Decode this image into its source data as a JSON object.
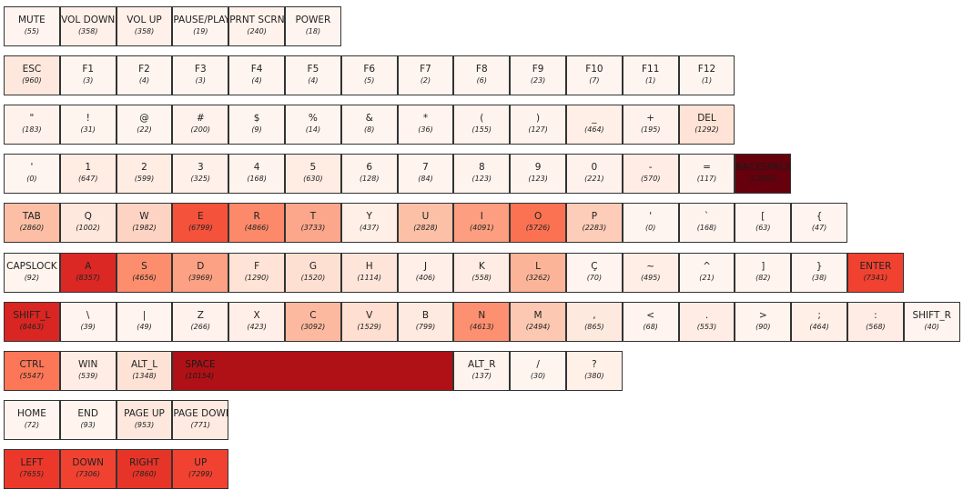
{
  "chart_data": {
    "type": "heatmap",
    "title": "",
    "value_max": 12063,
    "colors": {
      "low": "#fff5f0",
      "high": "#67000d",
      "border": "#333333"
    },
    "rows": [
      {
        "keys": [
          {
            "label": "MUTE",
            "count": 55
          },
          {
            "label": "VOL DOWN",
            "count": 358
          },
          {
            "label": "VOL UP",
            "count": 358
          },
          {
            "label": "PAUSE/PLAY",
            "count": 19
          },
          {
            "label": "PRNT SCRN",
            "count": 240
          },
          {
            "label": "POWER",
            "count": 18
          }
        ]
      },
      {
        "keys": [
          {
            "label": "ESC",
            "count": 960
          },
          {
            "label": "F1",
            "count": 3
          },
          {
            "label": "F2",
            "count": 4
          },
          {
            "label": "F3",
            "count": 3
          },
          {
            "label": "F4",
            "count": 4
          },
          {
            "label": "F5",
            "count": 4
          },
          {
            "label": "F6",
            "count": 5
          },
          {
            "label": "F7",
            "count": 2
          },
          {
            "label": "F8",
            "count": 6
          },
          {
            "label": "F9",
            "count": 23
          },
          {
            "label": "F10",
            "count": 7
          },
          {
            "label": "F11",
            "count": 1
          },
          {
            "label": "F12",
            "count": 1
          }
        ]
      },
      {
        "keys": [
          {
            "label": "\"",
            "count": 183
          },
          {
            "label": "!",
            "count": 31
          },
          {
            "label": "@",
            "count": 22
          },
          {
            "label": "#",
            "count": 200
          },
          {
            "label": "$",
            "count": 9
          },
          {
            "label": "%",
            "count": 14
          },
          {
            "label": "&",
            "count": 8
          },
          {
            "label": "*",
            "count": 36
          },
          {
            "label": "(",
            "count": 155
          },
          {
            "label": ")",
            "count": 127
          },
          {
            "label": "_",
            "count": 464
          },
          {
            "label": "+",
            "count": 195
          },
          {
            "label": "DEL",
            "count": 1292
          }
        ]
      },
      {
        "keys": [
          {
            "label": "'",
            "count": 0
          },
          {
            "label": "1",
            "count": 647
          },
          {
            "label": "2",
            "count": 599
          },
          {
            "label": "3",
            "count": 325
          },
          {
            "label": "4",
            "count": 168
          },
          {
            "label": "5",
            "count": 630
          },
          {
            "label": "6",
            "count": 128
          },
          {
            "label": "7",
            "count": 84
          },
          {
            "label": "8",
            "count": 123
          },
          {
            "label": "9",
            "count": 123
          },
          {
            "label": "0",
            "count": 221
          },
          {
            "label": "-",
            "count": 570
          },
          {
            "label": "=",
            "count": 117
          },
          {
            "label": "BACKSPACE",
            "count": 12063
          }
        ]
      },
      {
        "keys": [
          {
            "label": "TAB",
            "count": 2860
          },
          {
            "label": "Q",
            "count": 1002
          },
          {
            "label": "W",
            "count": 1982
          },
          {
            "label": "E",
            "count": 6799
          },
          {
            "label": "R",
            "count": 4866
          },
          {
            "label": "T",
            "count": 3733
          },
          {
            "label": "Y",
            "count": 437
          },
          {
            "label": "U",
            "count": 2828
          },
          {
            "label": "I",
            "count": 4091
          },
          {
            "label": "O",
            "count": 5726
          },
          {
            "label": "P",
            "count": 2283
          },
          {
            "label": "'",
            "count": 0
          },
          {
            "label": "`",
            "count": 168
          },
          {
            "label": "[",
            "count": 63
          },
          {
            "label": "{",
            "count": 47
          }
        ]
      },
      {
        "keys": [
          {
            "label": "CAPSLOCK",
            "count": 92
          },
          {
            "label": "A",
            "count": 8357
          },
          {
            "label": "S",
            "count": 4656
          },
          {
            "label": "D",
            "count": 3969
          },
          {
            "label": "F",
            "count": 1290
          },
          {
            "label": "G",
            "count": 1520
          },
          {
            "label": "H",
            "count": 1114
          },
          {
            "label": "J",
            "count": 406
          },
          {
            "label": "K",
            "count": 558
          },
          {
            "label": "L",
            "count": 3262
          },
          {
            "label": "Ç",
            "count": 70
          },
          {
            "label": "~",
            "count": 495
          },
          {
            "label": "^",
            "count": 21
          },
          {
            "label": "]",
            "count": 82
          },
          {
            "label": "}",
            "count": 38
          },
          {
            "label": "ENTER",
            "count": 7341
          }
        ]
      },
      {
        "keys": [
          {
            "label": "SHIFT_L",
            "count": 8463
          },
          {
            "label": "\\",
            "count": 39
          },
          {
            "label": "|",
            "count": 49
          },
          {
            "label": "Z",
            "count": 266
          },
          {
            "label": "X",
            "count": 423
          },
          {
            "label": "C",
            "count": 3092
          },
          {
            "label": "V",
            "count": 1529
          },
          {
            "label": "B",
            "count": 799
          },
          {
            "label": "N",
            "count": 4613
          },
          {
            "label": "M",
            "count": 2494
          },
          {
            "label": ",",
            "count": 865
          },
          {
            "label": "<",
            "count": 68
          },
          {
            "label": ".",
            "count": 553
          },
          {
            "label": ">",
            "count": 90
          },
          {
            "label": ";",
            "count": 464
          },
          {
            "label": ":",
            "count": 568
          },
          {
            "label": "SHIFT_R",
            "count": 40
          }
        ]
      },
      {
        "keys": [
          {
            "label": "CTRL",
            "count": 5547
          },
          {
            "label": "WIN",
            "count": 539
          },
          {
            "label": "ALT_L",
            "count": 1348
          },
          {
            "label": "SPACE",
            "count": 10154,
            "span": 5
          },
          {
            "label": "ALT_R",
            "count": 137
          },
          {
            "label": "/",
            "count": 30
          },
          {
            "label": "?",
            "count": 380
          }
        ]
      },
      {
        "keys": [
          {
            "label": "HOME",
            "count": 72
          },
          {
            "label": "END",
            "count": 93
          },
          {
            "label": "PAGE UP",
            "count": 953
          },
          {
            "label": "PAGE DOWN",
            "count": 771
          }
        ]
      },
      {
        "keys": [
          {
            "label": "LEFT",
            "count": 7655
          },
          {
            "label": "DOWN",
            "count": 7306
          },
          {
            "label": "RIGHT",
            "count": 7860
          },
          {
            "label": "UP",
            "count": 7299
          }
        ]
      }
    ]
  }
}
